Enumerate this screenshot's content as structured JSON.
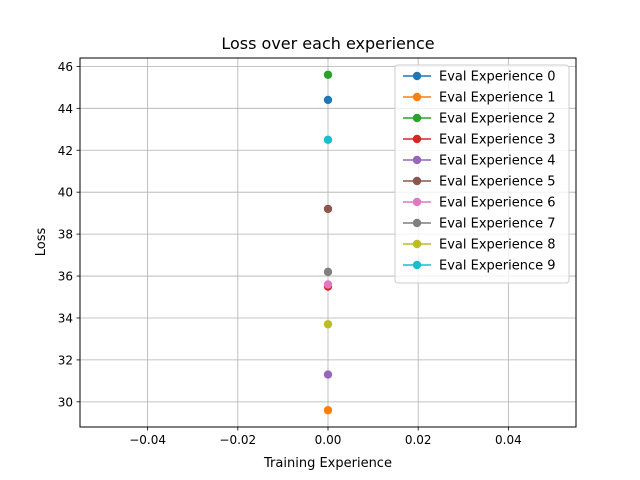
{
  "chart_data": {
    "type": "line",
    "title": "Loss over each experience",
    "xlabel": "Training Experience",
    "ylabel": "Loss",
    "xlim": [
      -0.055,
      0.055
    ],
    "ylim": [
      28.8,
      46.4
    ],
    "x_ticks": [
      -0.04,
      -0.02,
      0.0,
      0.02,
      0.04
    ],
    "x_tick_labels": [
      "−0.04",
      "−0.02",
      "0.00",
      "0.02",
      "0.04"
    ],
    "y_ticks": [
      30,
      32,
      34,
      36,
      38,
      40,
      42,
      44,
      46
    ],
    "y_tick_labels": [
      "30",
      "32",
      "34",
      "36",
      "38",
      "40",
      "42",
      "44",
      "46"
    ],
    "grid": true,
    "legend_position": "top-right",
    "marker": "circle",
    "series": [
      {
        "name": "Eval Experience 0",
        "color": "#1f77b4",
        "x": [
          0.0
        ],
        "y": [
          44.4
        ]
      },
      {
        "name": "Eval Experience 1",
        "color": "#ff7f0e",
        "x": [
          0.0
        ],
        "y": [
          29.6
        ]
      },
      {
        "name": "Eval Experience 2",
        "color": "#2ca02c",
        "x": [
          0.0
        ],
        "y": [
          45.6
        ]
      },
      {
        "name": "Eval Experience 3",
        "color": "#d62728",
        "x": [
          0.0
        ],
        "y": [
          35.5
        ]
      },
      {
        "name": "Eval Experience 4",
        "color": "#9467bd",
        "x": [
          0.0
        ],
        "y": [
          31.3
        ]
      },
      {
        "name": "Eval Experience 5",
        "color": "#8c564b",
        "x": [
          0.0
        ],
        "y": [
          39.2
        ]
      },
      {
        "name": "Eval Experience 6",
        "color": "#e377c2",
        "x": [
          0.0
        ],
        "y": [
          35.6
        ]
      },
      {
        "name": "Eval Experience 7",
        "color": "#7f7f7f",
        "x": [
          0.0
        ],
        "y": [
          36.2
        ]
      },
      {
        "name": "Eval Experience 8",
        "color": "#bcbd22",
        "x": [
          0.0
        ],
        "y": [
          33.7
        ]
      },
      {
        "name": "Eval Experience 9",
        "color": "#17becf",
        "x": [
          0.0
        ],
        "y": [
          42.5
        ]
      }
    ]
  }
}
